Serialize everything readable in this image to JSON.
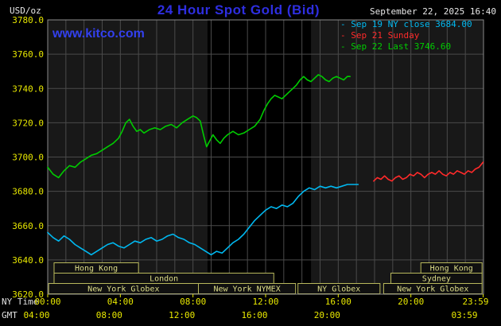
{
  "header": {
    "unit_label": "USD/oz",
    "title": "24 Hour Spot Gold (Bid)",
    "datetime": "September 22, 2025 16:40",
    "watermark": "www.kitco.com",
    "legend": [
      {
        "label": "- Sep 19 NY close 3684.00",
        "color": "#00b8f0"
      },
      {
        "label": "- Sep 21 Sunday",
        "color": "#ff2a2a"
      },
      {
        "label": "- Sep 22 Last 3746.60",
        "color": "#00cc00"
      }
    ]
  },
  "axes": {
    "ny_label": "NY Time",
    "gmt_label": "GMT",
    "y_ticks": [
      "3780.0",
      "3760.0",
      "3740.0",
      "3720.0",
      "3700.0",
      "3680.0",
      "3660.0",
      "3640.0",
      "3620.0"
    ],
    "x_ticks_ny": [
      {
        "hour": 0,
        "label": "00:00"
      },
      {
        "hour": 4,
        "label": "04:00"
      },
      {
        "hour": 8,
        "label": "08:00"
      },
      {
        "hour": 12,
        "label": "12:00"
      },
      {
        "hour": 16,
        "label": "16:00"
      },
      {
        "hour": 20,
        "label": "20:00"
      },
      {
        "hour": 23.983,
        "label": "23:59"
      }
    ],
    "x_ticks_gmt": [
      {
        "hour": 0,
        "label": "04:00"
      },
      {
        "hour": 4,
        "label": "08:00"
      },
      {
        "hour": 8,
        "label": "12:00"
      },
      {
        "hour": 12,
        "label": "16:00"
      },
      {
        "hour": 16,
        "label": "20:00"
      },
      {
        "hour": 23.983,
        "label": "03:59"
      }
    ],
    "tick_color": "#e8e800",
    "axis_name_color": "#e0e0e0"
  },
  "sessions": {
    "border_color": "#b8b85c",
    "text_color": "#dddd88",
    "rows": [
      {
        "boxes": [
          {
            "label": "Hong Kong",
            "start": 0.35,
            "end": 5.0
          },
          {
            "label": "Hong Kong",
            "start": 20.55,
            "end": 23.92
          }
        ]
      },
      {
        "boxes": [
          {
            "label": "London",
            "start": 0.35,
            "end": 12.45
          },
          {
            "label": "Sydney",
            "start": 18.9,
            "end": 23.92
          }
        ]
      },
      {
        "boxes": [
          {
            "label": "New York Globex",
            "start": 0.05,
            "end": 8.3
          },
          {
            "label": "New York NYMEX",
            "start": 8.3,
            "end": 13.65
          },
          {
            "label": "NY Globex",
            "start": 13.78,
            "end": 18.3
          },
          {
            "label": "New York Globex",
            "start": 18.5,
            "end": 23.92
          }
        ]
      }
    ]
  },
  "chart_data": {
    "type": "line",
    "title": "24 Hour Spot Gold (Bid)",
    "xlabel": "NY Time (hours)",
    "ylabel": "USD/oz",
    "xlim": [
      0,
      24
    ],
    "ylim": [
      3620,
      3780
    ],
    "y_grid_step": 20,
    "x_grid_step_hours": 1,
    "grid": true,
    "legend_position": "top-right",
    "plot_bg": "#181818",
    "highlight_band_hours": [
      8.8,
      14.5
    ],
    "highlight_band_color": "#000000",
    "grid_color": "#4a4a4a",
    "border_color": "#8a8a8a",
    "series": [
      {
        "name": "Sep 19 NY close",
        "color": "#00b8f0",
        "points": [
          [
            0,
            3656
          ],
          [
            0.3,
            3653
          ],
          [
            0.6,
            3651
          ],
          [
            0.9,
            3654
          ],
          [
            1.2,
            3652
          ],
          [
            1.5,
            3649
          ],
          [
            1.8,
            3647
          ],
          [
            2.1,
            3645
          ],
          [
            2.4,
            3643
          ],
          [
            2.7,
            3645
          ],
          [
            3,
            3647
          ],
          [
            3.3,
            3649
          ],
          [
            3.6,
            3650
          ],
          [
            3.9,
            3648
          ],
          [
            4.2,
            3647
          ],
          [
            4.5,
            3649
          ],
          [
            4.8,
            3651
          ],
          [
            5.1,
            3650
          ],
          [
            5.4,
            3652
          ],
          [
            5.7,
            3653
          ],
          [
            6,
            3651
          ],
          [
            6.3,
            3652
          ],
          [
            6.6,
            3654
          ],
          [
            6.9,
            3655
          ],
          [
            7.2,
            3653
          ],
          [
            7.5,
            3652
          ],
          [
            7.8,
            3650
          ],
          [
            8.1,
            3649
          ],
          [
            8.4,
            3647
          ],
          [
            8.7,
            3645
          ],
          [
            9,
            3643
          ],
          [
            9.3,
            3645
          ],
          [
            9.6,
            3644
          ],
          [
            9.9,
            3647
          ],
          [
            10.2,
            3650
          ],
          [
            10.5,
            3652
          ],
          [
            10.8,
            3655
          ],
          [
            11.1,
            3659
          ],
          [
            11.4,
            3663
          ],
          [
            11.7,
            3666
          ],
          [
            12,
            3669
          ],
          [
            12.3,
            3671
          ],
          [
            12.6,
            3670
          ],
          [
            12.9,
            3672
          ],
          [
            13.2,
            3671
          ],
          [
            13.5,
            3673
          ],
          [
            13.8,
            3677
          ],
          [
            14.1,
            3680
          ],
          [
            14.4,
            3682
          ],
          [
            14.7,
            3681
          ],
          [
            15,
            3683
          ],
          [
            15.3,
            3682
          ],
          [
            15.6,
            3683
          ],
          [
            15.9,
            3682
          ],
          [
            16.2,
            3683
          ],
          [
            16.5,
            3684
          ],
          [
            16.8,
            3684
          ],
          [
            17.1,
            3684
          ]
        ]
      },
      {
        "name": "Sep 21 Sunday",
        "color": "#ff2a2a",
        "points": [
          [
            17.95,
            3686
          ],
          [
            18.15,
            3688
          ],
          [
            18.35,
            3687
          ],
          [
            18.55,
            3689
          ],
          [
            18.75,
            3687
          ],
          [
            18.95,
            3686
          ],
          [
            19.15,
            3688
          ],
          [
            19.35,
            3689
          ],
          [
            19.55,
            3687
          ],
          [
            19.75,
            3688
          ],
          [
            19.95,
            3690
          ],
          [
            20.15,
            3689
          ],
          [
            20.35,
            3691
          ],
          [
            20.55,
            3690
          ],
          [
            20.75,
            3688
          ],
          [
            20.95,
            3690
          ],
          [
            21.15,
            3691
          ],
          [
            21.35,
            3690
          ],
          [
            21.55,
            3692
          ],
          [
            21.75,
            3690
          ],
          [
            21.95,
            3689
          ],
          [
            22.15,
            3691
          ],
          [
            22.35,
            3690
          ],
          [
            22.55,
            3692
          ],
          [
            22.75,
            3691
          ],
          [
            22.95,
            3690
          ],
          [
            23.15,
            3692
          ],
          [
            23.35,
            3691
          ],
          [
            23.55,
            3693
          ],
          [
            23.75,
            3694
          ],
          [
            23.98,
            3697
          ]
        ]
      },
      {
        "name": "Sep 22 Last",
        "color": "#00cc00",
        "points": [
          [
            0,
            3694
          ],
          [
            0.3,
            3690
          ],
          [
            0.6,
            3688
          ],
          [
            0.9,
            3692
          ],
          [
            1.2,
            3695
          ],
          [
            1.5,
            3694
          ],
          [
            1.8,
            3697
          ],
          [
            2.1,
            3699
          ],
          [
            2.4,
            3701
          ],
          [
            2.7,
            3702
          ],
          [
            3,
            3704
          ],
          [
            3.3,
            3706
          ],
          [
            3.6,
            3708
          ],
          [
            3.9,
            3711
          ],
          [
            4.1,
            3715
          ],
          [
            4.3,
            3720
          ],
          [
            4.5,
            3722
          ],
          [
            4.7,
            3718
          ],
          [
            4.9,
            3715
          ],
          [
            5.1,
            3716
          ],
          [
            5.3,
            3714
          ],
          [
            5.6,
            3716
          ],
          [
            5.9,
            3717
          ],
          [
            6.2,
            3716
          ],
          [
            6.5,
            3718
          ],
          [
            6.8,
            3719
          ],
          [
            7.1,
            3717
          ],
          [
            7.4,
            3720
          ],
          [
            7.7,
            3722
          ],
          [
            8,
            3724
          ],
          [
            8.2,
            3723
          ],
          [
            8.4,
            3721
          ],
          [
            8.6,
            3712
          ],
          [
            8.75,
            3706
          ],
          [
            8.9,
            3709
          ],
          [
            9.1,
            3713
          ],
          [
            9.3,
            3710
          ],
          [
            9.5,
            3708
          ],
          [
            9.7,
            3711
          ],
          [
            9.9,
            3713
          ],
          [
            10.2,
            3715
          ],
          [
            10.5,
            3713
          ],
          [
            10.8,
            3714
          ],
          [
            11.1,
            3716
          ],
          [
            11.4,
            3718
          ],
          [
            11.7,
            3722
          ],
          [
            11.9,
            3727
          ],
          [
            12.1,
            3731
          ],
          [
            12.3,
            3734
          ],
          [
            12.5,
            3736
          ],
          [
            12.7,
            3735
          ],
          [
            12.9,
            3734
          ],
          [
            13.1,
            3736
          ],
          [
            13.3,
            3738
          ],
          [
            13.5,
            3740
          ],
          [
            13.7,
            3742
          ],
          [
            13.9,
            3745
          ],
          [
            14.1,
            3747
          ],
          [
            14.3,
            3745
          ],
          [
            14.5,
            3744
          ],
          [
            14.7,
            3746
          ],
          [
            14.9,
            3748
          ],
          [
            15.1,
            3747
          ],
          [
            15.3,
            3745
          ],
          [
            15.5,
            3744
          ],
          [
            15.7,
            3746
          ],
          [
            15.9,
            3747
          ],
          [
            16.1,
            3746
          ],
          [
            16.3,
            3745
          ],
          [
            16.5,
            3747
          ],
          [
            16.65,
            3747
          ]
        ]
      }
    ]
  }
}
